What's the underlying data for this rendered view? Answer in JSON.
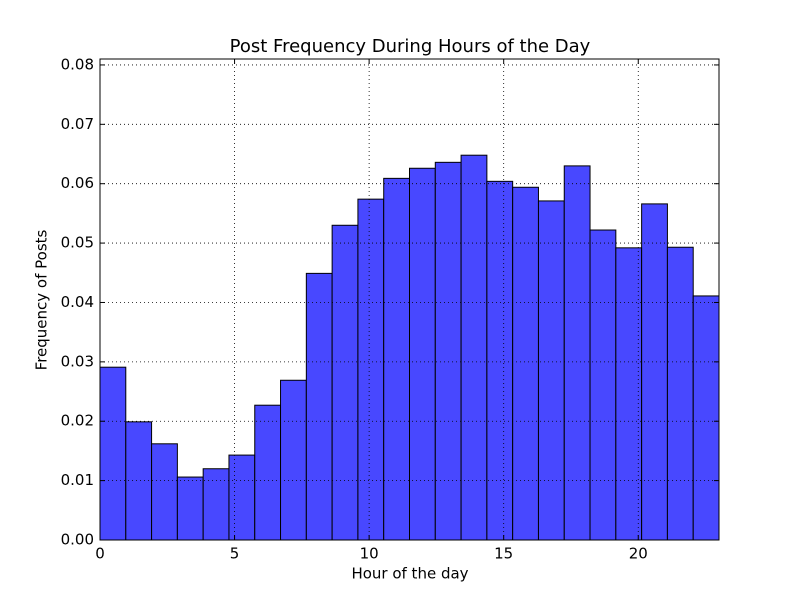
{
  "chart_data": {
    "type": "histogram",
    "title": "Post Frequency During Hours of the Day",
    "xlabel": "Hour of the day",
    "ylabel": "Frequency of Posts",
    "bins": [
      0,
      0.9583,
      1.9167,
      2.875,
      3.8333,
      4.7917,
      5.75,
      6.7083,
      7.6667,
      8.625,
      9.5833,
      10.5417,
      11.5,
      12.4583,
      13.4167,
      14.375,
      15.3333,
      16.2917,
      17.25,
      18.2083,
      19.1667,
      20.125,
      21.0833,
      22.0417,
      23
    ],
    "values": [
      0.0291,
      0.0199,
      0.0162,
      0.0106,
      0.012,
      0.0143,
      0.0227,
      0.0269,
      0.0449,
      0.053,
      0.0574,
      0.0609,
      0.0626,
      0.0636,
      0.0648,
      0.0604,
      0.0594,
      0.0571,
      0.063,
      0.0522,
      0.0492,
      0.0566,
      0.0493,
      0.0411
    ],
    "color": "#4444ff",
    "xlim": [
      0,
      23
    ],
    "xticks": [
      0,
      5,
      10,
      15,
      20
    ],
    "ylim": [
      0,
      0.081
    ],
    "yticks": [
      {
        "value": 0,
        "label": "0.00"
      },
      0.01,
      0.02,
      0.03,
      0.04,
      0.05,
      0.06,
      0.07,
      0.08
    ],
    "grid": true
  }
}
